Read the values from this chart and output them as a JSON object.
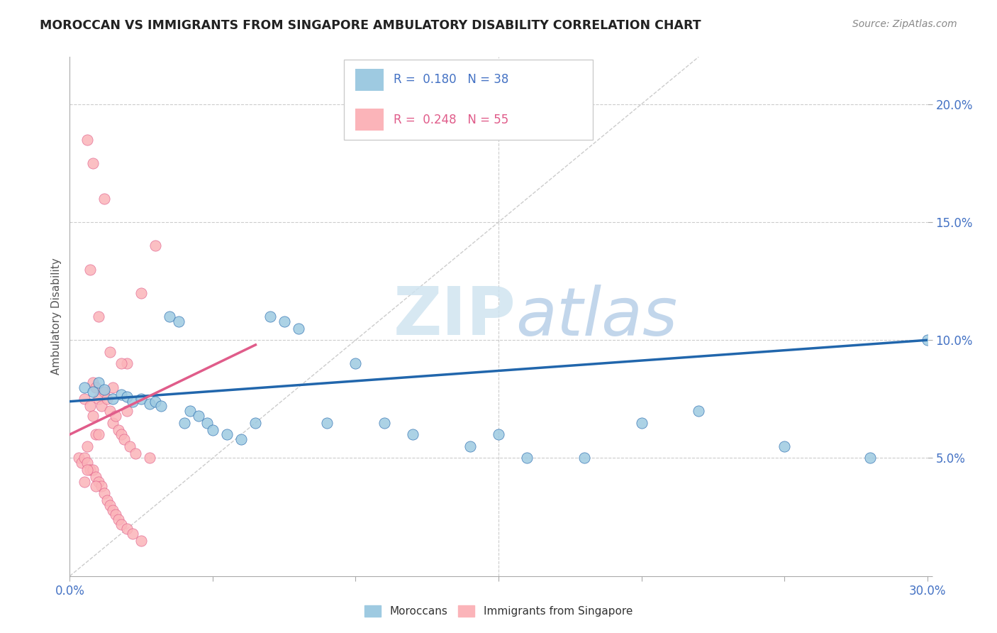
{
  "title": "MOROCCAN VS IMMIGRANTS FROM SINGAPORE AMBULATORY DISABILITY CORRELATION CHART",
  "source": "Source: ZipAtlas.com",
  "ylabel": "Ambulatory Disability",
  "xlim": [
    0.0,
    0.3
  ],
  "ylim": [
    0.0,
    0.22
  ],
  "x_tick_positions": [
    0.0,
    0.05,
    0.1,
    0.15,
    0.2,
    0.25,
    0.3
  ],
  "x_tick_labels": [
    "0.0%",
    "",
    "",
    "",
    "",
    "",
    "30.0%"
  ],
  "y_tick_positions": [
    0.0,
    0.05,
    0.1,
    0.15,
    0.2
  ],
  "y_tick_labels": [
    "",
    "5.0%",
    "10.0%",
    "15.0%",
    "20.0%"
  ],
  "legend_blue_r": "0.180",
  "legend_blue_n": "38",
  "legend_pink_r": "0.248",
  "legend_pink_n": "55",
  "blue_color": "#9ecae1",
  "pink_color": "#fbb4b9",
  "blue_line_color": "#2166ac",
  "pink_line_color": "#e05c8a",
  "watermark_color": "#d0e4f0",
  "background_color": "#ffffff",
  "grid_color": "#cccccc",
  "blue_scatter_x": [
    0.005,
    0.008,
    0.01,
    0.012,
    0.015,
    0.018,
    0.02,
    0.022,
    0.025,
    0.028,
    0.03,
    0.032,
    0.035,
    0.038,
    0.04,
    0.042,
    0.045,
    0.048,
    0.05,
    0.055,
    0.06,
    0.065,
    0.07,
    0.075,
    0.08,
    0.09,
    0.1,
    0.11,
    0.12,
    0.14,
    0.16,
    0.18,
    0.2,
    0.22,
    0.25,
    0.28,
    0.3,
    0.15
  ],
  "blue_scatter_y": [
    0.08,
    0.078,
    0.082,
    0.079,
    0.075,
    0.077,
    0.076,
    0.074,
    0.075,
    0.073,
    0.074,
    0.072,
    0.11,
    0.108,
    0.065,
    0.07,
    0.068,
    0.065,
    0.062,
    0.06,
    0.058,
    0.065,
    0.11,
    0.108,
    0.105,
    0.065,
    0.09,
    0.065,
    0.06,
    0.055,
    0.05,
    0.05,
    0.065,
    0.07,
    0.055,
    0.05,
    0.1,
    0.06
  ],
  "pink_scatter_x": [
    0.003,
    0.004,
    0.005,
    0.005,
    0.006,
    0.006,
    0.007,
    0.007,
    0.008,
    0.008,
    0.008,
    0.009,
    0.009,
    0.009,
    0.01,
    0.01,
    0.01,
    0.011,
    0.011,
    0.012,
    0.012,
    0.013,
    0.013,
    0.014,
    0.014,
    0.015,
    0.015,
    0.015,
    0.016,
    0.016,
    0.017,
    0.017,
    0.018,
    0.018,
    0.019,
    0.02,
    0.02,
    0.021,
    0.022,
    0.023,
    0.025,
    0.025,
    0.028,
    0.03,
    0.012,
    0.008,
    0.006,
    0.007,
    0.01,
    0.014,
    0.018,
    0.006,
    0.005,
    0.009,
    0.02
  ],
  "pink_scatter_y": [
    0.05,
    0.048,
    0.075,
    0.05,
    0.055,
    0.048,
    0.072,
    0.045,
    0.082,
    0.068,
    0.045,
    0.08,
    0.06,
    0.042,
    0.075,
    0.06,
    0.04,
    0.072,
    0.038,
    0.078,
    0.035,
    0.075,
    0.032,
    0.07,
    0.03,
    0.08,
    0.065,
    0.028,
    0.068,
    0.026,
    0.062,
    0.024,
    0.06,
    0.022,
    0.058,
    0.09,
    0.02,
    0.055,
    0.018,
    0.052,
    0.12,
    0.015,
    0.05,
    0.14,
    0.16,
    0.175,
    0.185,
    0.13,
    0.11,
    0.095,
    0.09,
    0.045,
    0.04,
    0.038,
    0.07
  ],
  "blue_trend_x": [
    0.0,
    0.3
  ],
  "blue_trend_y": [
    0.074,
    0.1
  ],
  "pink_trend_x": [
    0.0,
    0.065
  ],
  "pink_trend_y": [
    0.06,
    0.098
  ],
  "diag_line_x": [
    0.0,
    0.22
  ],
  "diag_line_y": [
    0.0,
    0.22
  ]
}
